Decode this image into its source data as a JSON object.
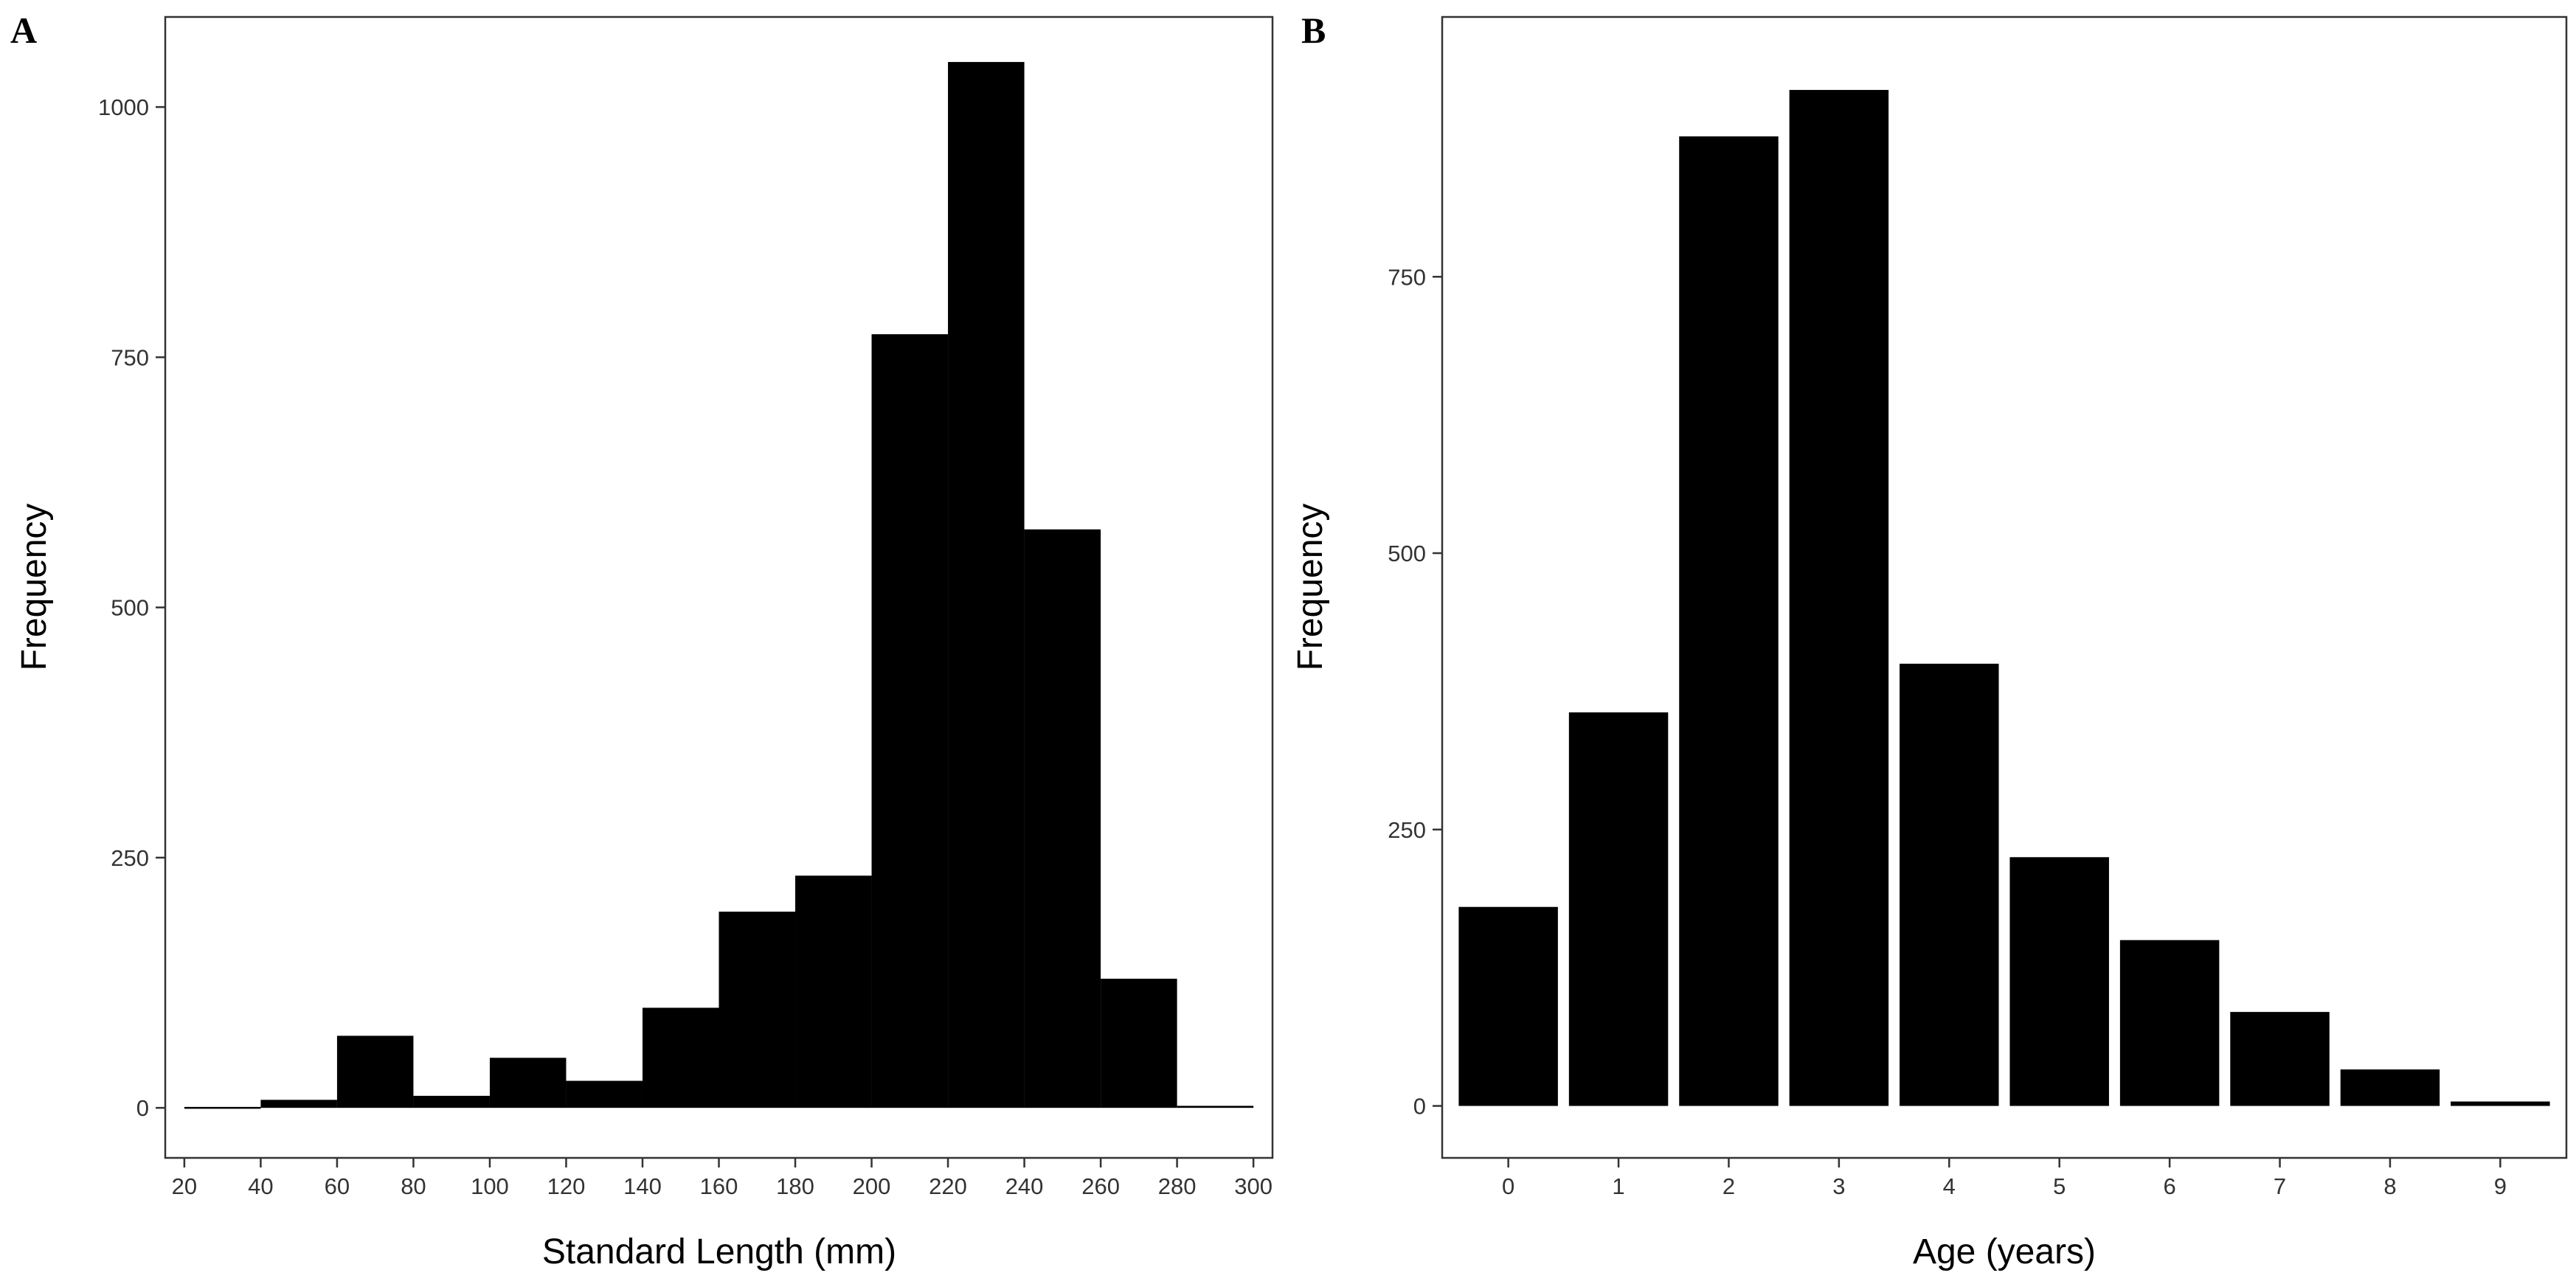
{
  "chart_data": [
    {
      "panel": "A",
      "type": "bar",
      "xlabel": "Standard Length (mm)",
      "ylabel": "Frequency",
      "xlim": [
        15,
        305
      ],
      "ylim": [
        -50,
        1090
      ],
      "x_ticks": [
        20,
        40,
        60,
        80,
        100,
        120,
        140,
        160,
        180,
        200,
        220,
        240,
        260,
        280,
        300
      ],
      "y_ticks": [
        0,
        250,
        500,
        750,
        1000
      ],
      "bin_width": 20,
      "bins": [
        {
          "x_start": 20,
          "x_end": 40,
          "value": 0
        },
        {
          "x_start": 40,
          "x_end": 60,
          "value": 8
        },
        {
          "x_start": 60,
          "x_end": 80,
          "value": 72
        },
        {
          "x_start": 80,
          "x_end": 100,
          "value": 12
        },
        {
          "x_start": 100,
          "x_end": 120,
          "value": 50
        },
        {
          "x_start": 120,
          "x_end": 140,
          "value": 27
        },
        {
          "x_start": 140,
          "x_end": 160,
          "value": 100
        },
        {
          "x_start": 160,
          "x_end": 180,
          "value": 196
        },
        {
          "x_start": 180,
          "x_end": 200,
          "value": 232
        },
        {
          "x_start": 200,
          "x_end": 220,
          "value": 773
        },
        {
          "x_start": 220,
          "x_end": 240,
          "value": 1045
        },
        {
          "x_start": 240,
          "x_end": 260,
          "value": 578
        },
        {
          "x_start": 260,
          "x_end": 280,
          "value": 129
        },
        {
          "x_start": 280,
          "x_end": 300,
          "value": 2
        }
      ],
      "bar_color": "#000000",
      "grid": false
    },
    {
      "panel": "B",
      "type": "bar",
      "xlabel": "Age (years)",
      "ylabel": "Frequency",
      "xlim": [
        -0.6,
        9.6
      ],
      "ylim": [
        -47,
        985
      ],
      "categories": [
        "0",
        "1",
        "2",
        "3",
        "4",
        "5",
        "6",
        "7",
        "8",
        "9"
      ],
      "values": [
        180,
        356,
        877,
        919,
        400,
        225,
        150,
        85,
        33,
        4
      ],
      "y_ticks": [
        0,
        250,
        500,
        750
      ],
      "bar_color": "#000000",
      "grid": false
    }
  ]
}
